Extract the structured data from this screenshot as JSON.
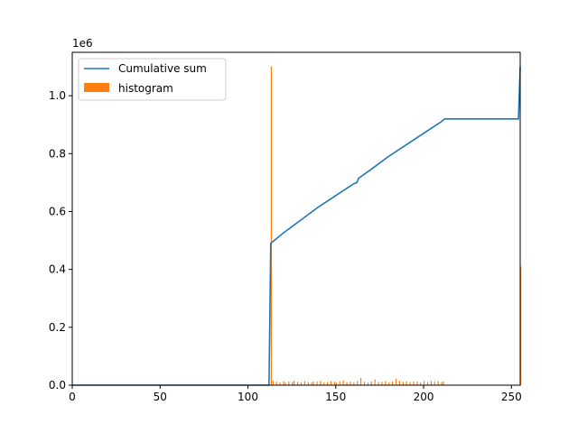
{
  "chart_data": {
    "type": "line",
    "title": "",
    "xlabel": "",
    "ylabel": "",
    "y_offset_label": "1e6",
    "xlim": [
      0,
      255
    ],
    "ylim": [
      0,
      1150000
    ],
    "x_ticks": [
      0,
      50,
      100,
      150,
      200,
      250
    ],
    "y_ticks": [
      0.0,
      0.2,
      0.4,
      0.6,
      0.8,
      1.0
    ],
    "y_tick_labels": [
      "0.0",
      "0.2",
      "0.4",
      "0.6",
      "0.8",
      "1.0"
    ],
    "y_tick_scale": 1000000,
    "grid": false,
    "legend_position": "upper-left",
    "series": [
      {
        "name": "Cumulative sum",
        "type": "line",
        "color": "#1f77b4",
        "x": [
          0,
          112,
          113,
          120,
          130,
          140,
          150,
          160,
          162,
          163,
          170,
          180,
          190,
          200,
          205,
          210,
          212,
          220,
          230,
          240,
          250,
          254,
          255
        ],
        "y": [
          0,
          0,
          490000,
          525000,
          570000,
          615000,
          655000,
          695000,
          700000,
          715000,
          745000,
          790000,
          830000,
          870000,
          890000,
          910000,
          920000,
          920000,
          920000,
          920000,
          920000,
          920000,
          1100000
        ]
      },
      {
        "name": "histogram",
        "type": "bar",
        "color": "#ff7f0e",
        "x": [
          113,
          114,
          116,
          118,
          120,
          121,
          123,
          125,
          126,
          128,
          130,
          132,
          134,
          136,
          137,
          139,
          141,
          143,
          145,
          147,
          149,
          150,
          152,
          154,
          156,
          158,
          160,
          162,
          164,
          166,
          168,
          170,
          172,
          174,
          176,
          178,
          180,
          182,
          184,
          186,
          188,
          190,
          192,
          194,
          196,
          198,
          200,
          202,
          204,
          206,
          208,
          210,
          211,
          255
        ],
        "y": [
          1100000,
          15000,
          12000,
          10000,
          14000,
          9000,
          13000,
          11000,
          16000,
          12000,
          10000,
          14000,
          11000,
          9000,
          13000,
          12000,
          15000,
          10000,
          11000,
          14000,
          12000,
          9000,
          13000,
          16000,
          10000,
          12000,
          11000,
          14000,
          25000,
          12000,
          10000,
          13000,
          20000,
          11000,
          12000,
          14000,
          10000,
          13000,
          22000,
          15000,
          12000,
          14000,
          11000,
          13000,
          12000,
          10000,
          15000,
          11000,
          16000,
          12000,
          14000,
          11000,
          13000,
          410000
        ]
      }
    ]
  }
}
